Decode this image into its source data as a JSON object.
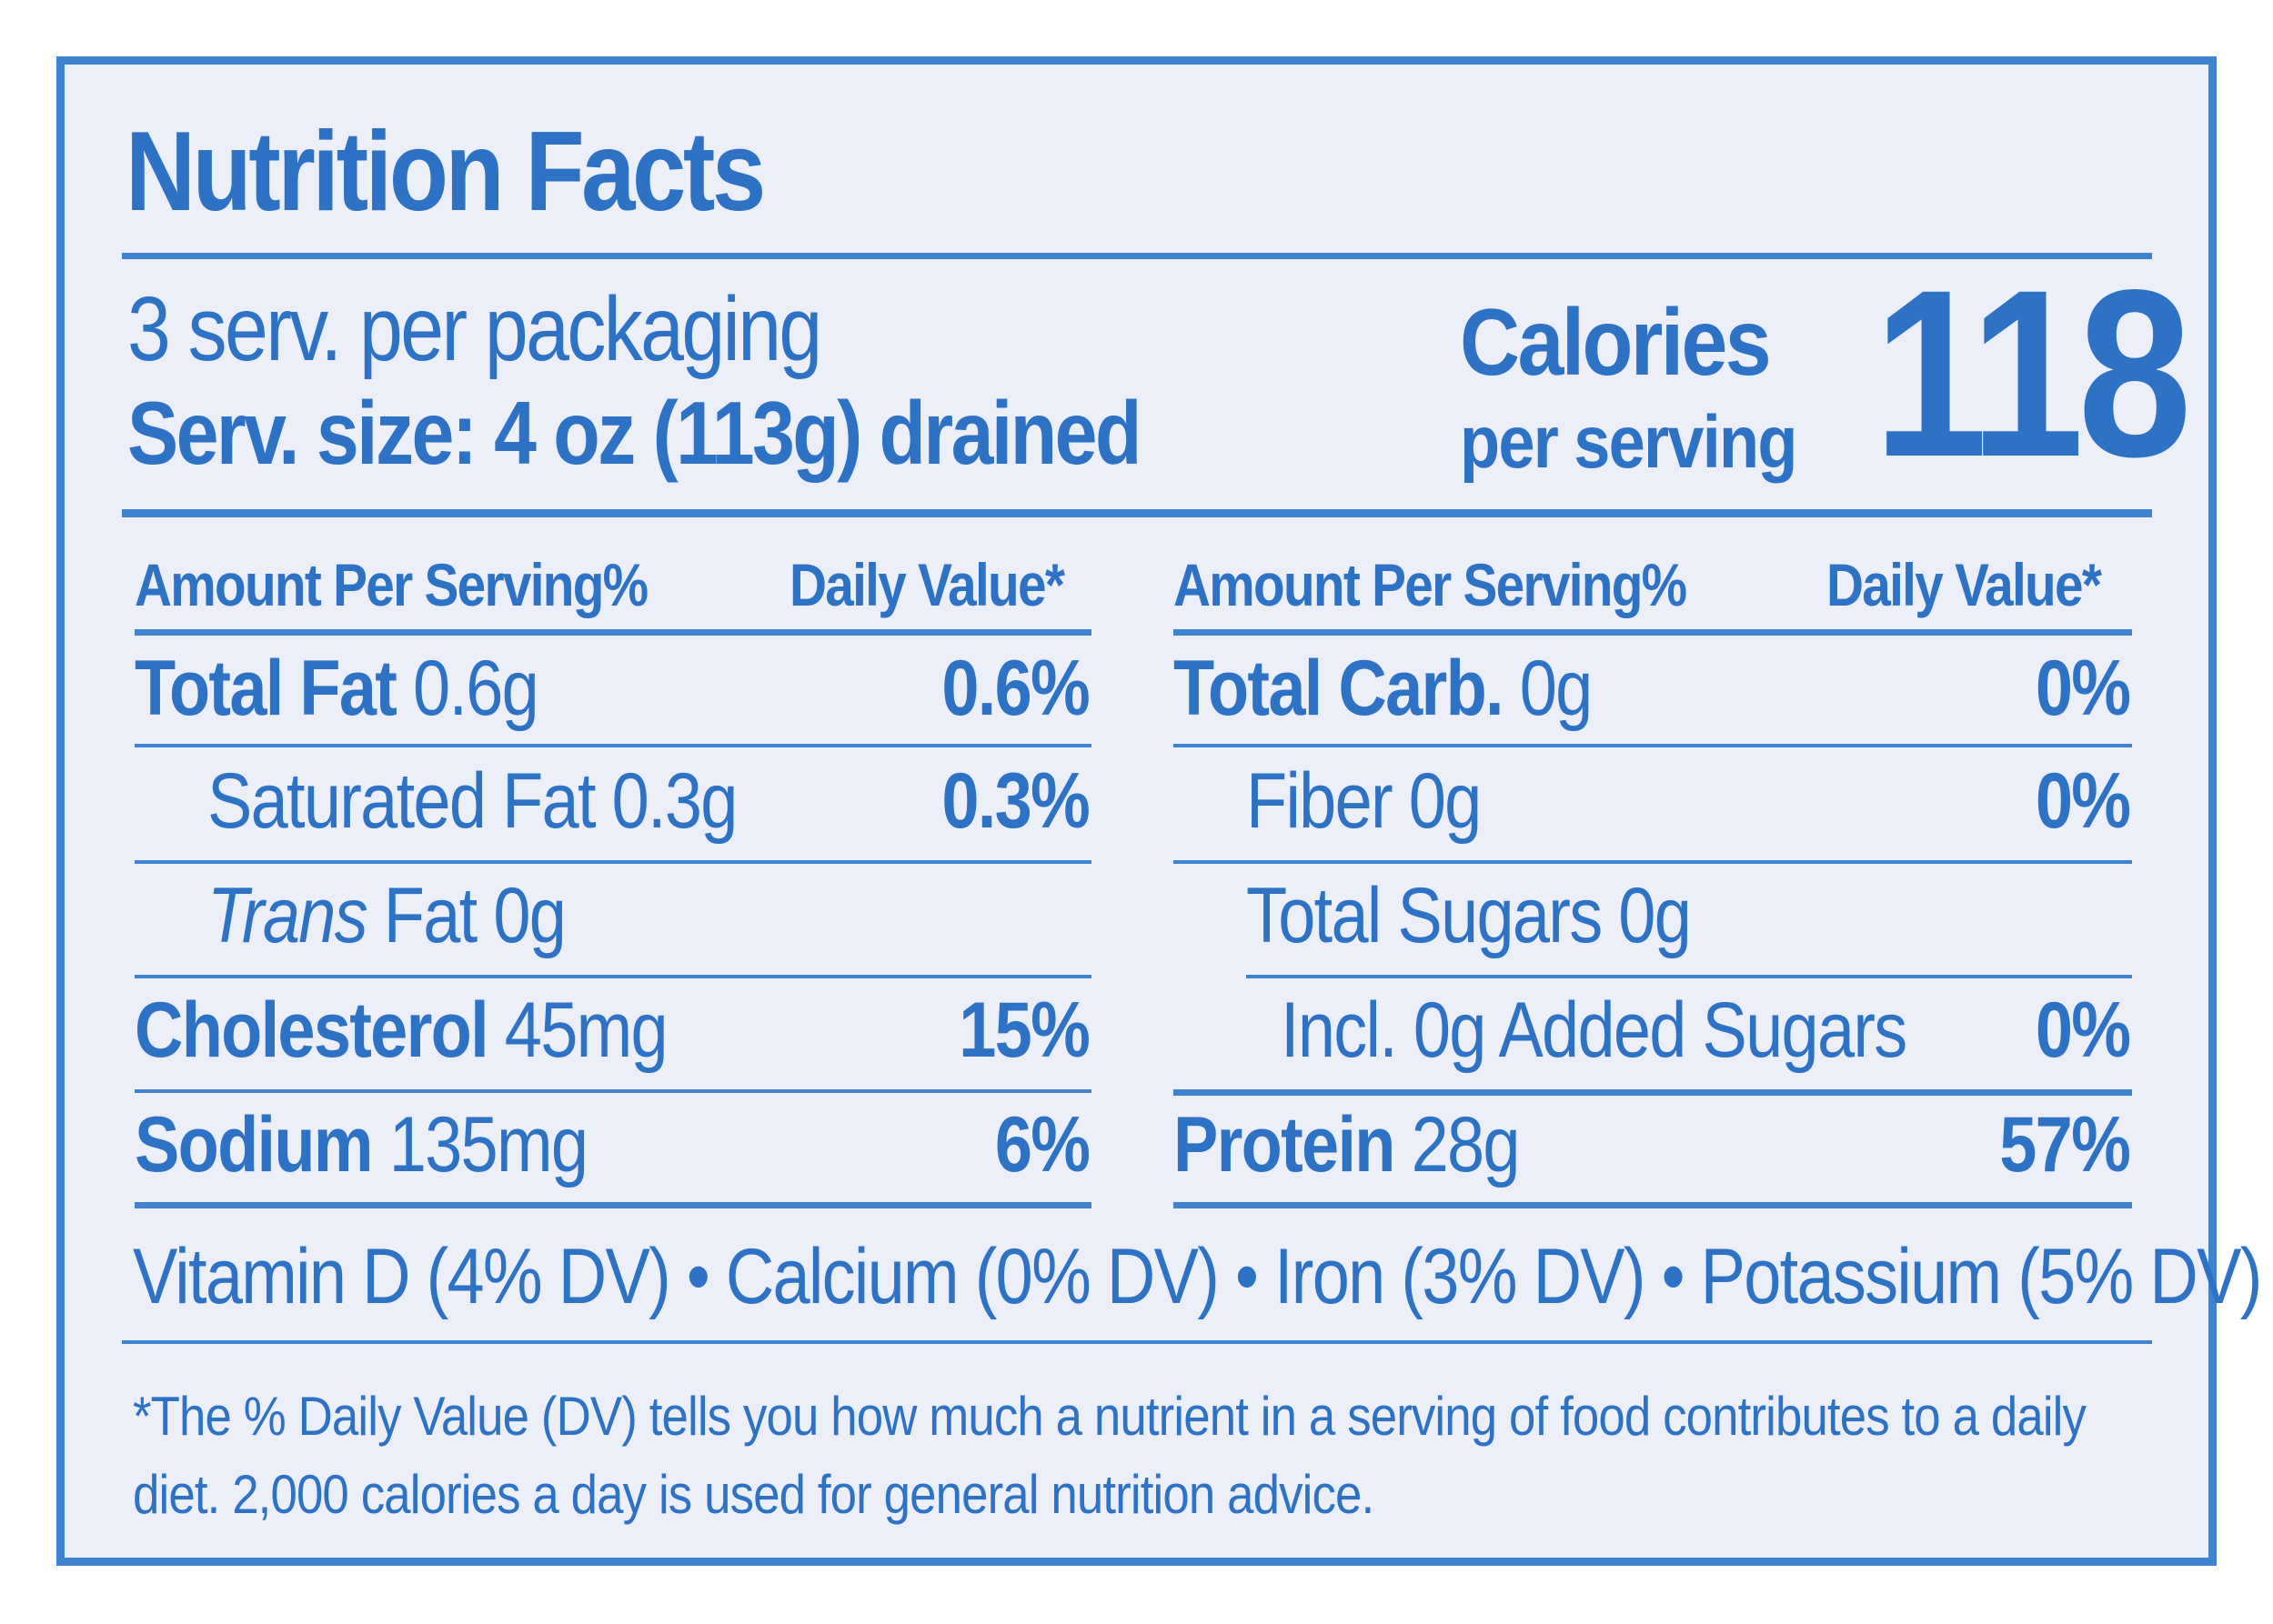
{
  "colors": {
    "label_blue": "#2d72c4",
    "rule_blue": "#3f82cf",
    "panel_bg": "#eceef8"
  },
  "title": "Nutrition Facts",
  "servings": {
    "per_package": "3 serv. per packaging",
    "size": "Serv. size: 4 oz (113g) drained"
  },
  "calories": {
    "label": "Calories",
    "sub_label": "per serving",
    "value": "118"
  },
  "left_column": {
    "header_amount": "Amount Per Serving%",
    "header_dv": "Daily Value*",
    "rows": [
      {
        "name": "Total Fat",
        "amount": "0.6g",
        "dv": "0.6%"
      },
      {
        "name": "Saturated Fat 0.3g",
        "dv": "0.3%"
      },
      {
        "name_italic": "Trans",
        "name": "Fat 0g"
      },
      {
        "name": "Cholesterol",
        "amount": "45mg",
        "dv": "15%"
      },
      {
        "name": "Sodium",
        "amount": "135mg",
        "dv": "6%"
      }
    ]
  },
  "right_column": {
    "header_amount": "Amount Per Serving%",
    "header_dv": "Daily Value*",
    "rows": [
      {
        "name": "Total Carb.",
        "amount": "0g",
        "dv": "0%"
      },
      {
        "name": "Fiber 0g",
        "dv": "0%"
      },
      {
        "name": "Total Sugars 0g"
      },
      {
        "name": "Incl. 0g Added Sugars",
        "dv": "0%"
      },
      {
        "name": "Protein",
        "amount": "28g",
        "dv": "57%"
      }
    ]
  },
  "vitamins": "Vitamin D (4% DV) • Calcium (0% DV) • Iron (3% DV) • Potassium (5% DV)",
  "footnote": "*The % Daily Value (DV) tells you how much a nutrient in a serving of food contributes to a daily diet. 2,000 calories a day is used for general nutrition advice."
}
